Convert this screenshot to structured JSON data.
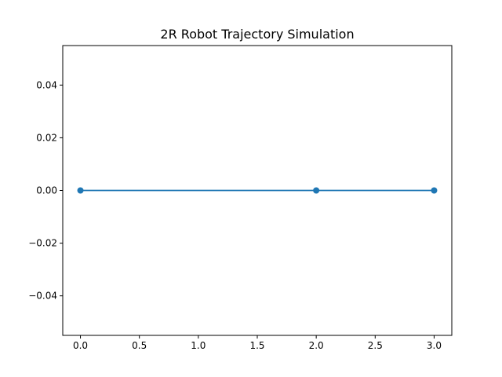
{
  "chart_data": {
    "type": "line",
    "title": "2R Robot Trajectory Simulation",
    "xlabel": "",
    "ylabel": "",
    "xlim": [
      -0.15,
      3.15
    ],
    "ylim": [
      -0.055,
      0.055
    ],
    "x_ticks": [
      0.0,
      0.5,
      1.0,
      1.5,
      2.0,
      2.5,
      3.0
    ],
    "x_tick_labels": [
      "0.0",
      "0.5",
      "1.0",
      "1.5",
      "2.0",
      "2.5",
      "3.0"
    ],
    "y_ticks": [
      -0.04,
      -0.02,
      0.0,
      0.02,
      0.04
    ],
    "y_tick_labels": [
      "−0.04",
      "−0.02",
      "0.00",
      "0.02",
      "0.04"
    ],
    "grid": false,
    "series": [
      {
        "x": [
          0,
          2,
          3
        ],
        "y": [
          0,
          0,
          0
        ],
        "color": "#1f77b4",
        "marker": "circle"
      }
    ]
  }
}
